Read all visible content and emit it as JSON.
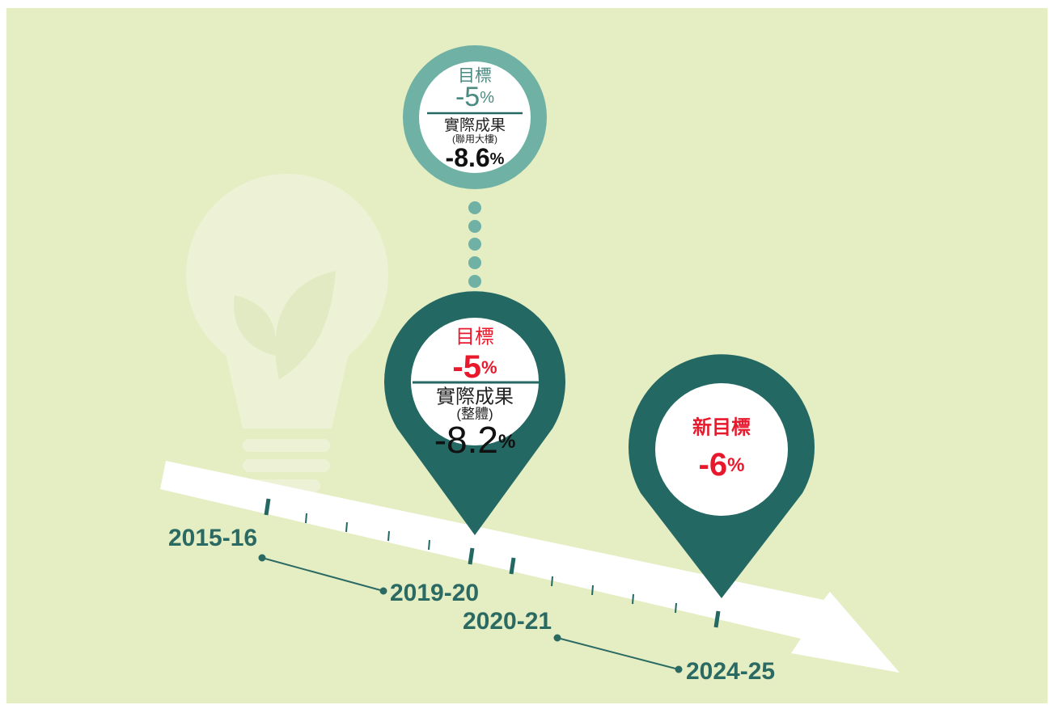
{
  "top_circle": {
    "target_label": "目標",
    "target_value": "-5",
    "target_unit": "%",
    "result_label": "實際成果",
    "result_note": "(聯用大樓)",
    "result_value": "-8.6",
    "result_unit": "%"
  },
  "middle_pin": {
    "target_label": "目標",
    "target_value": "-5",
    "target_unit": "%",
    "result_label": "實際成果",
    "result_note": "(整體)",
    "result_value": "-8.2",
    "result_unit": "%"
  },
  "right_pin": {
    "label": "新目標",
    "value": "-6",
    "unit": "%"
  },
  "timeline": {
    "labels": [
      "2015-16",
      "2019-20",
      "2020-21",
      "2024-25"
    ]
  }
}
